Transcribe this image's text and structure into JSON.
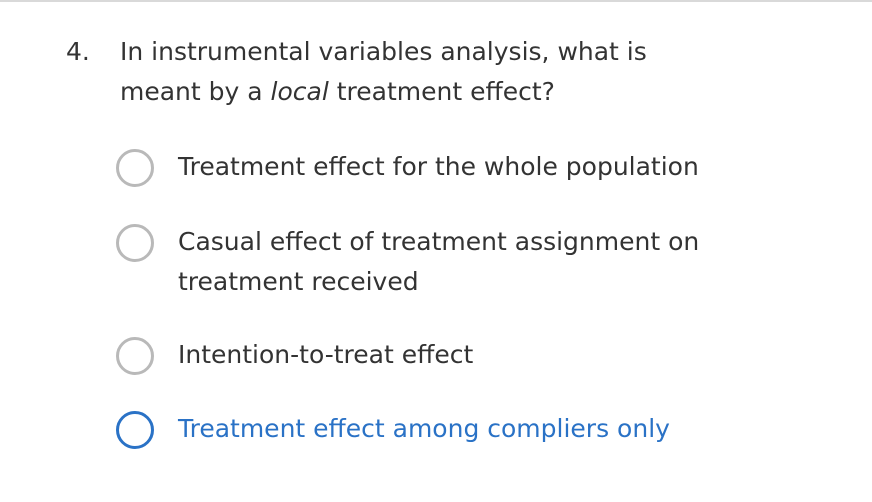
{
  "question": {
    "number": "4.",
    "text_before": "In instrumental variables analysis, what is meant by a ",
    "text_emphasis": "local",
    "text_after": " treatment effect?"
  },
  "options": [
    {
      "label": "Treatment effect for the whole population",
      "selected": false
    },
    {
      "label": "Casual effect of treatment assignment on treatment received",
      "selected": false
    },
    {
      "label": "Intention-to-treat effect",
      "selected": false
    },
    {
      "label": "Treatment effect among compliers only",
      "selected": true
    }
  ],
  "colors": {
    "radio_border": "#b9b9b9",
    "selected_accent": "#2a72c6",
    "text": "#333333",
    "top_rule": "#d9d9d9"
  }
}
